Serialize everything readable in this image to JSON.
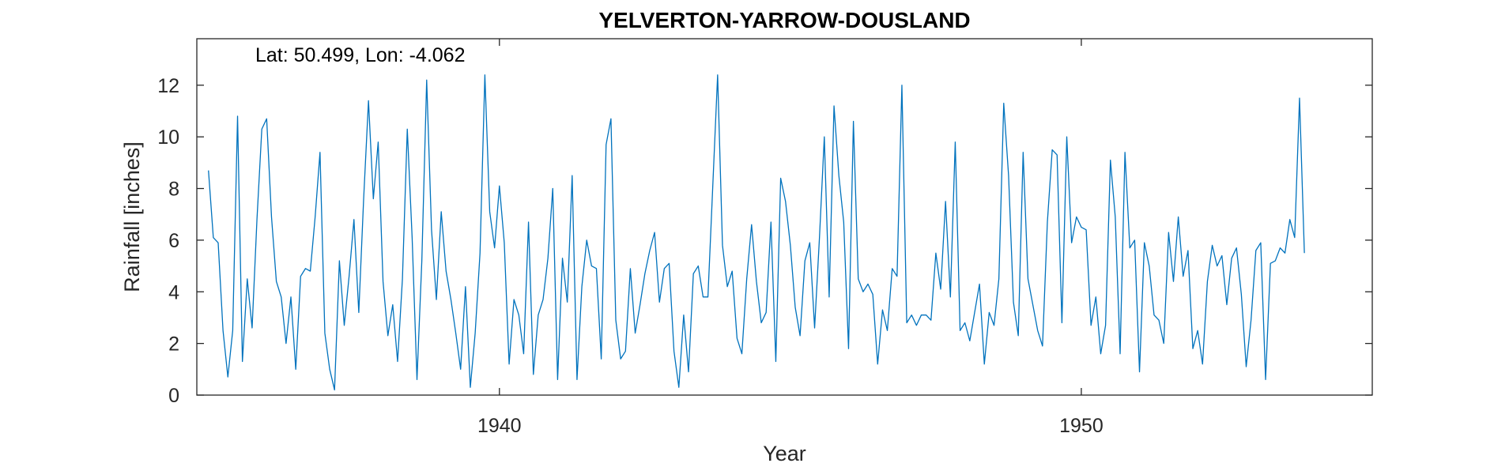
{
  "chart_data": {
    "type": "line",
    "title": "YELVERTON-YARROW-DOUSLAND",
    "annotation": "Lat: 50.499, Lon: -4.062",
    "xlabel": "Year",
    "ylabel": "Rainfall [inches]",
    "xlim": [
      1934.8,
      1955.0
    ],
    "ylim": [
      0,
      13.8
    ],
    "x_ticks": [
      1940,
      1950
    ],
    "x_tick_labels": [
      "1940",
      "1950"
    ],
    "y_ticks": [
      0,
      2,
      4,
      6,
      8,
      10,
      12
    ],
    "y_tick_labels": [
      "0",
      "2",
      "4",
      "6",
      "8",
      "10",
      "12"
    ],
    "grid": false,
    "color": "#0072BD",
    "series": [
      {
        "x_start": "1935-01",
        "frequency": "monthly",
        "values": [
          8.7,
          6.1,
          5.9,
          2.5,
          0.7,
          2.5,
          10.8,
          1.3,
          4.5,
          2.6,
          6.8,
          10.3,
          10.7,
          6.9,
          4.4,
          3.8,
          2.0,
          3.8,
          1.0,
          4.6,
          4.9,
          4.8,
          6.9,
          9.4,
          2.4,
          1.0,
          0.2,
          5.2,
          2.7,
          4.6,
          6.8,
          3.2,
          7.6,
          11.4,
          7.6,
          9.8,
          4.4,
          2.3,
          3.5,
          1.3,
          4.5,
          10.3,
          6.1,
          0.6,
          5.2,
          12.2,
          6.4,
          3.7,
          7.1,
          4.8,
          3.7,
          2.4,
          1.0,
          4.2,
          0.3,
          2.4,
          5.5,
          12.4,
          7.1,
          5.7,
          8.1,
          5.9,
          1.2,
          3.7,
          3.1,
          1.6,
          6.7,
          0.8,
          3.1,
          3.7,
          5.3,
          8.0,
          0.6,
          5.3,
          3.6,
          8.5,
          0.6,
          4.2,
          6.0,
          5.0,
          4.9,
          1.4,
          9.7,
          10.7,
          2.9,
          1.4,
          1.7,
          4.9,
          2.4,
          3.5,
          4.7,
          5.6,
          6.3,
          3.6,
          4.9,
          5.1,
          1.7,
          0.3,
          3.1,
          0.9,
          4.7,
          5.0,
          3.8,
          3.8,
          8.1,
          12.4,
          5.8,
          4.2,
          4.8,
          2.2,
          1.6,
          4.5,
          6.6,
          4.4,
          2.8,
          3.2,
          6.7,
          1.3,
          8.4,
          7.5,
          5.8,
          3.4,
          2.3,
          5.2,
          5.9,
          2.6,
          6.1,
          10.0,
          3.8,
          11.2,
          8.5,
          6.7,
          1.8,
          10.6,
          4.5,
          4.0,
          4.3,
          3.9,
          1.2,
          3.3,
          2.5,
          4.9,
          4.6,
          12.0,
          2.8,
          3.1,
          2.7,
          3.1,
          3.1,
          2.9,
          5.5,
          4.1,
          7.5,
          3.8,
          9.8,
          2.5,
          2.8,
          2.1,
          3.2,
          4.3,
          1.2,
          3.2,
          2.7,
          4.5,
          11.3,
          8.5,
          3.6,
          2.3,
          9.4,
          4.5,
          3.5,
          2.5,
          1.9,
          6.7,
          9.5,
          9.3,
          2.8,
          10.0,
          5.9,
          6.9,
          6.5,
          6.4,
          2.7,
          3.8,
          1.6,
          2.7,
          9.1,
          6.9,
          1.6,
          9.4,
          5.7,
          6.0,
          0.9,
          5.9,
          5.0,
          3.1,
          2.9,
          2.0,
          6.3,
          4.4,
          6.9,
          4.6,
          5.6,
          1.8,
          2.5,
          1.2,
          4.4,
          5.8,
          5.0,
          5.4,
          3.5,
          5.3,
          5.7,
          3.9,
          1.1,
          2.9,
          5.6,
          5.9,
          0.6,
          5.1,
          5.2,
          5.7,
          5.5,
          6.8,
          6.1,
          11.5,
          5.5
        ]
      }
    ]
  }
}
